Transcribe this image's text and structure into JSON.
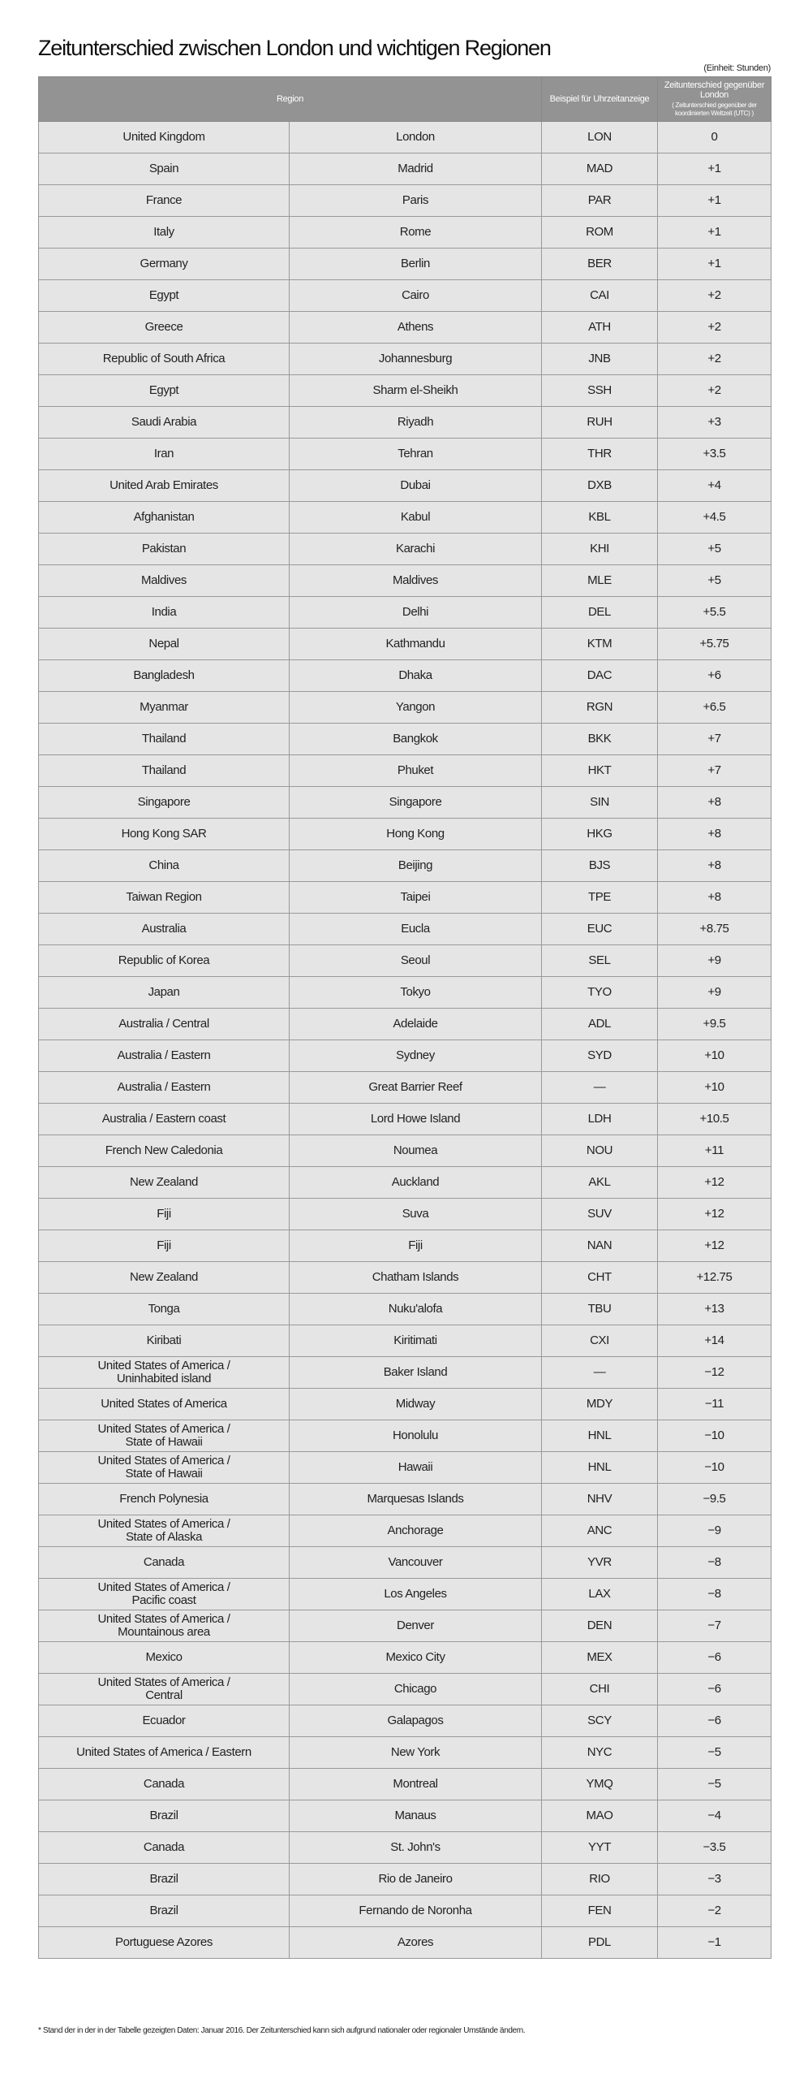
{
  "title": "Zeitunterschied zwischen London und wichtigen Regionen",
  "unit": "(Einheit: Stunden)",
  "headers": {
    "region": "Region",
    "code": "Beispiel für Uhrzeitanzeige",
    "diff": "Zeitunterschied gegenüber London",
    "diff_sub": "( Zeitunterschied gegenüber der koordinierten Weltzeit (UTC) )"
  },
  "rows": [
    [
      "United Kingdom",
      "London",
      "LON",
      "0"
    ],
    [
      "Spain",
      "Madrid",
      "MAD",
      "+1"
    ],
    [
      "France",
      "Paris",
      "PAR",
      "+1"
    ],
    [
      "Italy",
      "Rome",
      "ROM",
      "+1"
    ],
    [
      "Germany",
      "Berlin",
      "BER",
      "+1"
    ],
    [
      "Egypt",
      "Cairo",
      "CAI",
      "+2"
    ],
    [
      "Greece",
      "Athens",
      "ATH",
      "+2"
    ],
    [
      "Republic of South Africa",
      "Johannesburg",
      "JNB",
      "+2"
    ],
    [
      "Egypt",
      "Sharm el-Sheikh",
      "SSH",
      "+2"
    ],
    [
      "Saudi Arabia",
      "Riyadh",
      "RUH",
      "+3"
    ],
    [
      "Iran",
      "Tehran",
      "THR",
      "+3.5"
    ],
    [
      "United Arab Emirates",
      "Dubai",
      "DXB",
      "+4"
    ],
    [
      "Afghanistan",
      "Kabul",
      "KBL",
      "+4.5"
    ],
    [
      "Pakistan",
      "Karachi",
      "KHI",
      "+5"
    ],
    [
      "Maldives",
      "Maldives",
      "MLE",
      "+5"
    ],
    [
      "India",
      "Delhi",
      "DEL",
      "+5.5"
    ],
    [
      "Nepal",
      "Kathmandu",
      "KTM",
      "+5.75"
    ],
    [
      "Bangladesh",
      "Dhaka",
      "DAC",
      "+6"
    ],
    [
      "Myanmar",
      "Yangon",
      "RGN",
      "+6.5"
    ],
    [
      "Thailand",
      "Bangkok",
      "BKK",
      "+7"
    ],
    [
      "Thailand",
      "Phuket",
      "HKT",
      "+7"
    ],
    [
      "Singapore",
      "Singapore",
      "SIN",
      "+8"
    ],
    [
      "Hong Kong SAR",
      "Hong Kong",
      "HKG",
      "+8"
    ],
    [
      "China",
      "Beijing",
      "BJS",
      "+8"
    ],
    [
      "Taiwan Region",
      "Taipei",
      "TPE",
      "+8"
    ],
    [
      "Australia",
      "Eucla",
      "EUC",
      "+8.75"
    ],
    [
      "Republic of Korea",
      "Seoul",
      "SEL",
      "+9"
    ],
    [
      "Japan",
      "Tokyo",
      "TYO",
      "+9"
    ],
    [
      "Australia / Central",
      "Adelaide",
      "ADL",
      "+9.5"
    ],
    [
      "Australia / Eastern",
      "Sydney",
      "SYD",
      "+10"
    ],
    [
      "Australia / Eastern",
      "Great Barrier Reef",
      "—",
      "+10"
    ],
    [
      "Australia / Eastern coast",
      "Lord Howe Island",
      "LDH",
      "+10.5"
    ],
    [
      "French New Caledonia",
      "Noumea",
      "NOU",
      "+11"
    ],
    [
      "New Zealand",
      "Auckland",
      "AKL",
      "+12"
    ],
    [
      "Fiji",
      "Suva",
      "SUV",
      "+12"
    ],
    [
      "Fiji",
      "Fiji",
      "NAN",
      "+12"
    ],
    [
      "New Zealand",
      "Chatham Islands",
      "CHT",
      "+12.75"
    ],
    [
      "Tonga",
      "Nuku'alofa",
      "TBU",
      "+13"
    ],
    [
      "Kiribati",
      "Kiritimati",
      "CXI",
      "+14"
    ],
    [
      "United States of America /\nUninhabited island",
      "Baker Island",
      "—",
      "−12"
    ],
    [
      "United States of America",
      "Midway",
      "MDY",
      "−11"
    ],
    [
      "United States of America /\nState of Hawaii",
      "Honolulu",
      "HNL",
      "−10"
    ],
    [
      "United States of America /\nState of Hawaii",
      "Hawaii",
      "HNL",
      "−10"
    ],
    [
      "French Polynesia",
      "Marquesas Islands",
      "NHV",
      "−9.5"
    ],
    [
      "United States of America /\nState of Alaska",
      "Anchorage",
      "ANC",
      "−9"
    ],
    [
      "Canada",
      "Vancouver",
      "YVR",
      "−8"
    ],
    [
      "United States of America /\nPacific coast",
      "Los Angeles",
      "LAX",
      "−8"
    ],
    [
      "United States of America /\nMountainous area",
      "Denver",
      "DEN",
      "−7"
    ],
    [
      "Mexico",
      "Mexico City",
      "MEX",
      "−6"
    ],
    [
      "United States of America /\nCentral",
      "Chicago",
      "CHI",
      "−6"
    ],
    [
      "Ecuador",
      "Galapagos",
      "SCY",
      "−6"
    ],
    [
      "United States of America / Eastern",
      "New York",
      "NYC",
      "−5"
    ],
    [
      "Canada",
      "Montreal",
      "YMQ",
      "−5"
    ],
    [
      "Brazil",
      "Manaus",
      "MAO",
      "−4"
    ],
    [
      "Canada",
      "St. John's",
      "YYT",
      "−3.5"
    ],
    [
      "Brazil",
      "Rio de Janeiro",
      "RIO",
      "−3"
    ],
    [
      "Brazil",
      "Fernando de Noronha",
      "FEN",
      "−2"
    ],
    [
      "Portuguese Azores",
      "Azores",
      "PDL",
      "−1"
    ]
  ],
  "footnote": "* Stand der in der in der Tabelle gezeigten Daten: Januar 2016. Der Zeitunterschied kann sich aufgrund nationaler oder regionaler Umstände ändern."
}
